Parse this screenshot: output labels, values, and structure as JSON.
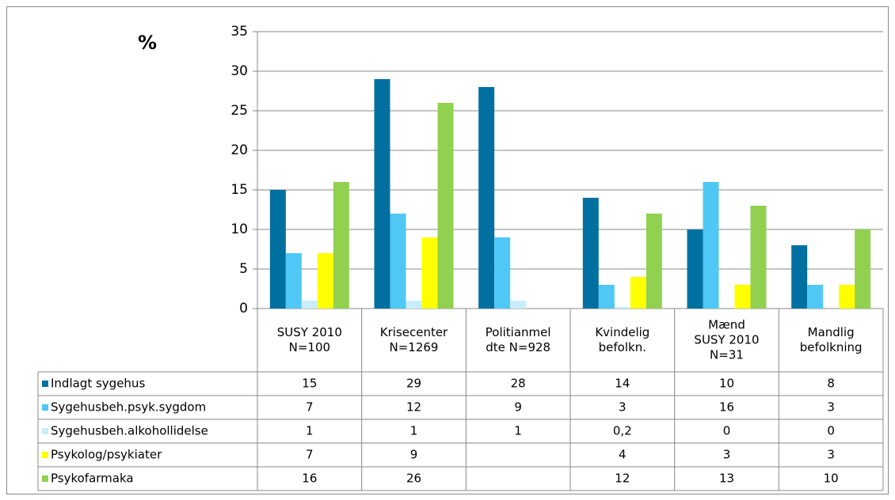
{
  "chart_data": {
    "type": "bar",
    "ylabel": "%",
    "categories": [
      [
        "SUSY 2010",
        "N=100"
      ],
      [
        "Krisecenter",
        "N=1269"
      ],
      [
        "Politianmel",
        "dte N=928"
      ],
      [
        "Kvindelig",
        "befolkn."
      ],
      [
        "Mænd",
        "SUSY 2010",
        "N=31"
      ],
      [
        "Mandlig",
        "befolkning"
      ]
    ],
    "series": [
      {
        "name": "Indlagt sygehus",
        "color": "#0070a0",
        "values": [
          15,
          29,
          28,
          14,
          10,
          8
        ]
      },
      {
        "name": "Sygehusbeh.psyk.sygdom",
        "color": "#4fc8f5",
        "values": [
          7,
          12,
          9,
          3,
          16,
          3
        ]
      },
      {
        "name": "Sygehusbeh.alkohollidelse",
        "color": "#c8eefb",
        "values": [
          1,
          1,
          1,
          0.2,
          0,
          0
        ],
        "value_labels": [
          "1",
          "1",
          "1",
          "0,2",
          "0",
          "0"
        ]
      },
      {
        "name": "Psykolog/psykiater",
        "color": "#ffff00",
        "values": [
          7,
          9,
          null,
          4,
          3,
          3
        ]
      },
      {
        "name": "Psykofarmaka",
        "color": "#92d050",
        "values": [
          16,
          26,
          null,
          12,
          13,
          10
        ]
      }
    ],
    "ylim": [
      0,
      35
    ],
    "yticks": [
      0,
      5,
      10,
      15,
      20,
      25,
      30,
      35
    ],
    "grid": true
  }
}
